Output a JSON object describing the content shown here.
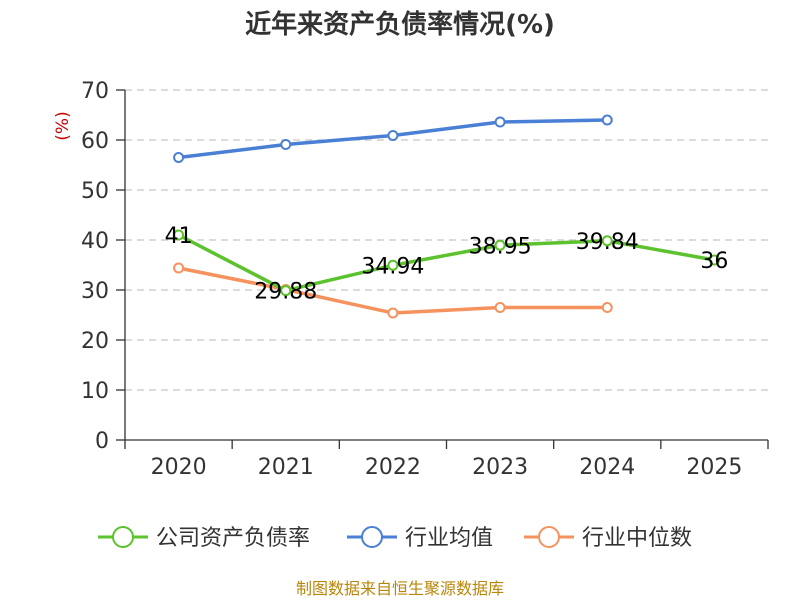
{
  "chart_data": {
    "type": "line",
    "title": "近年来资产负债率情况(%)",
    "unit_label": "(%)",
    "categories": [
      "2020",
      "2021",
      "2022",
      "2023",
      "2024",
      "2025"
    ],
    "ylim": [
      0,
      70
    ],
    "yticks": [
      0,
      10,
      20,
      30,
      40,
      50,
      60,
      70
    ],
    "y_tick_labels": [
      "0",
      "10",
      "20",
      "30",
      "40",
      "50",
      "60",
      "70"
    ],
    "grid": true,
    "legend_position": "bottom",
    "series": [
      {
        "name": "公司资产负债率",
        "color": "#5cc22d",
        "values": [
          41,
          29.88,
          34.94,
          38.95,
          39.84,
          36
        ],
        "labels": [
          "41",
          "29.88",
          "34.94",
          "38.95",
          "39.84",
          "36"
        ]
      },
      {
        "name": "行业均值",
        "color": "#4a7fd6",
        "values": [
          56.5,
          59.1,
          60.9,
          63.6,
          64.0,
          null
        ]
      },
      {
        "name": "行业中位数",
        "color": "#f5925e",
        "values": [
          34.4,
          30.1,
          25.4,
          26.5,
          26.5,
          null
        ]
      }
    ]
  },
  "source": "制图数据来自恒生聚源数据库"
}
